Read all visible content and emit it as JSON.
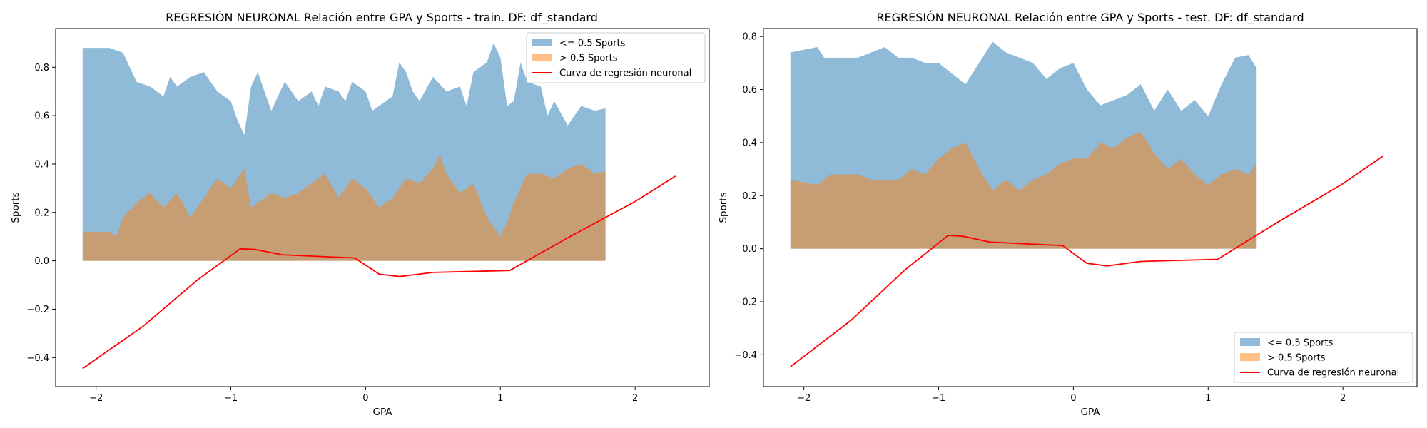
{
  "chart_data": [
    {
      "type": "area",
      "title": "REGRESIÓN NEURONAL Relación entre GPA y Sports - train. DF: df_standard",
      "xlabel": "GPA",
      "ylabel": "Sports",
      "xlim": [
        -2.3,
        2.55
      ],
      "ylim": [
        -0.52,
        0.96
      ],
      "xticks": [
        -2,
        -1,
        0,
        1,
        2
      ],
      "xtick_labels": [
        "−2",
        "−1",
        "0",
        "1",
        "2"
      ],
      "yticks": [
        -0.4,
        -0.2,
        0.0,
        0.2,
        0.4,
        0.6,
        0.8
      ],
      "ytick_labels": [
        "−0.4",
        "−0.2",
        "0.0",
        "0.2",
        "0.4",
        "0.6",
        "0.8"
      ],
      "grid": false,
      "legend_position": "top-right",
      "series": [
        {
          "name": "<= 0.5 Sports",
          "kind": "area",
          "color": "#1f77b4",
          "x": [
            -2.1,
            -1.95,
            -1.9,
            -1.8,
            -1.75,
            -1.7,
            -1.6,
            -1.5,
            -1.45,
            -1.4,
            -1.3,
            -1.2,
            -1.1,
            -1.0,
            -0.95,
            -0.9,
            -0.85,
            -0.8,
            -0.75,
            -0.7,
            -0.65,
            -0.6,
            -0.5,
            -0.4,
            -0.35,
            -0.3,
            -0.2,
            -0.15,
            -0.1,
            0.0,
            0.05,
            0.1,
            0.2,
            0.25,
            0.3,
            0.35,
            0.4,
            0.5,
            0.6,
            0.7,
            0.75,
            0.8,
            0.9,
            0.95,
            1.0,
            1.05,
            1.1,
            1.15,
            1.2,
            1.3,
            1.35,
            1.4,
            1.5,
            1.6,
            1.7,
            1.78
          ],
          "values": [
            0.88,
            0.88,
            0.88,
            0.86,
            0.8,
            0.74,
            0.72,
            0.68,
            0.76,
            0.72,
            0.76,
            0.78,
            0.7,
            0.66,
            0.58,
            0.52,
            0.72,
            0.78,
            0.7,
            0.62,
            0.68,
            0.74,
            0.66,
            0.7,
            0.64,
            0.72,
            0.7,
            0.66,
            0.74,
            0.7,
            0.62,
            0.64,
            0.68,
            0.82,
            0.78,
            0.7,
            0.66,
            0.76,
            0.7,
            0.72,
            0.64,
            0.78,
            0.82,
            0.9,
            0.84,
            0.64,
            0.66,
            0.82,
            0.74,
            0.72,
            0.6,
            0.66,
            0.56,
            0.64,
            0.62,
            0.63
          ]
        },
        {
          "name": "> 0.5 Sports",
          "kind": "area",
          "color": "#ff7f0e",
          "x": [
            -2.1,
            -1.95,
            -1.9,
            -1.85,
            -1.8,
            -1.7,
            -1.6,
            -1.5,
            -1.4,
            -1.3,
            -1.2,
            -1.1,
            -1.0,
            -0.95,
            -0.9,
            -0.85,
            -0.8,
            -0.7,
            -0.6,
            -0.5,
            -0.4,
            -0.3,
            -0.2,
            -0.1,
            0.0,
            0.1,
            0.2,
            0.3,
            0.4,
            0.5,
            0.55,
            0.6,
            0.7,
            0.8,
            0.9,
            0.95,
            1.0,
            1.05,
            1.1,
            1.2,
            1.3,
            1.4,
            1.5,
            1.6,
            1.7,
            1.78
          ],
          "values": [
            0.12,
            0.12,
            0.12,
            0.1,
            0.18,
            0.24,
            0.28,
            0.22,
            0.28,
            0.18,
            0.26,
            0.34,
            0.3,
            0.34,
            0.38,
            0.22,
            0.24,
            0.28,
            0.26,
            0.28,
            0.32,
            0.36,
            0.26,
            0.34,
            0.3,
            0.22,
            0.26,
            0.34,
            0.32,
            0.38,
            0.44,
            0.36,
            0.28,
            0.32,
            0.18,
            0.14,
            0.1,
            0.16,
            0.24,
            0.36,
            0.36,
            0.34,
            0.38,
            0.4,
            0.36,
            0.37
          ]
        },
        {
          "name": "Curva de regresión neuronal",
          "kind": "line",
          "color": "#ff0000",
          "x": [
            -2.1,
            -1.65,
            -1.25,
            -0.93,
            -0.82,
            -0.62,
            -0.3,
            -0.08,
            0.1,
            0.25,
            0.5,
            1.07,
            1.5,
            2.0,
            2.3
          ],
          "values": [
            -0.445,
            -0.27,
            -0.08,
            0.05,
            0.047,
            0.025,
            0.017,
            0.012,
            -0.055,
            -0.065,
            -0.048,
            -0.04,
            0.095,
            0.245,
            0.35
          ]
        }
      ]
    },
    {
      "type": "area",
      "title": "REGRESIÓN NEURONAL Relación entre GPA y Sports - test. DF: df_standard",
      "xlabel": "GPA",
      "ylabel": "Sports",
      "xlim": [
        -2.3,
        2.55
      ],
      "ylim": [
        -0.52,
        0.83
      ],
      "xticks": [
        -2,
        -1,
        0,
        1,
        2
      ],
      "xtick_labels": [
        "−2",
        "−1",
        "0",
        "1",
        "2"
      ],
      "yticks": [
        -0.4,
        -0.2,
        0.0,
        0.2,
        0.4,
        0.6,
        0.8
      ],
      "ytick_labels": [
        "−0.4",
        "−0.2",
        "0.0",
        "0.2",
        "0.4",
        "0.6",
        "0.8"
      ],
      "grid": false,
      "legend_position": "bottom-right",
      "series": [
        {
          "name": "<= 0.5 Sports",
          "kind": "area",
          "color": "#1f77b4",
          "x": [
            -2.1,
            -1.9,
            -1.85,
            -1.6,
            -1.5,
            -1.4,
            -1.3,
            -1.2,
            -1.1,
            -1.0,
            -0.9,
            -0.8,
            -0.7,
            -0.6,
            -0.5,
            -0.4,
            -0.3,
            -0.2,
            -0.1,
            0.0,
            0.1,
            0.2,
            0.3,
            0.4,
            0.5,
            0.6,
            0.7,
            0.8,
            0.9,
            1.0,
            1.1,
            1.2,
            1.3,
            1.36
          ],
          "values": [
            0.74,
            0.76,
            0.72,
            0.72,
            0.74,
            0.76,
            0.72,
            0.72,
            0.7,
            0.7,
            0.66,
            0.62,
            0.7,
            0.78,
            0.74,
            0.72,
            0.7,
            0.64,
            0.68,
            0.7,
            0.6,
            0.54,
            0.56,
            0.58,
            0.62,
            0.52,
            0.6,
            0.52,
            0.56,
            0.5,
            0.62,
            0.72,
            0.73,
            0.68
          ]
        },
        {
          "name": "> 0.5 Sports",
          "kind": "area",
          "color": "#ff7f0e",
          "x": [
            -2.1,
            -1.9,
            -1.8,
            -1.6,
            -1.5,
            -1.4,
            -1.3,
            -1.2,
            -1.1,
            -1.0,
            -0.9,
            -0.8,
            -0.7,
            -0.6,
            -0.5,
            -0.4,
            -0.3,
            -0.2,
            -0.1,
            0.0,
            0.1,
            0.2,
            0.3,
            0.4,
            0.5,
            0.6,
            0.7,
            0.8,
            0.9,
            1.0,
            1.1,
            1.2,
            1.3,
            1.36
          ],
          "values": [
            0.26,
            0.24,
            0.28,
            0.28,
            0.26,
            0.26,
            0.26,
            0.3,
            0.28,
            0.34,
            0.38,
            0.4,
            0.3,
            0.22,
            0.26,
            0.22,
            0.26,
            0.28,
            0.32,
            0.34,
            0.34,
            0.4,
            0.38,
            0.42,
            0.44,
            0.36,
            0.3,
            0.34,
            0.28,
            0.24,
            0.28,
            0.3,
            0.28,
            0.32
          ]
        },
        {
          "name": "Curva de regresión neuronal",
          "kind": "line",
          "color": "#ff0000",
          "x": [
            -2.1,
            -1.65,
            -1.25,
            -0.93,
            -0.82,
            -0.62,
            -0.3,
            -0.08,
            0.1,
            0.25,
            0.5,
            1.07,
            1.5,
            2.0,
            2.3
          ],
          "values": [
            -0.445,
            -0.27,
            -0.08,
            0.05,
            0.047,
            0.025,
            0.017,
            0.012,
            -0.055,
            -0.065,
            -0.048,
            -0.04,
            0.095,
            0.245,
            0.35
          ]
        }
      ]
    }
  ]
}
